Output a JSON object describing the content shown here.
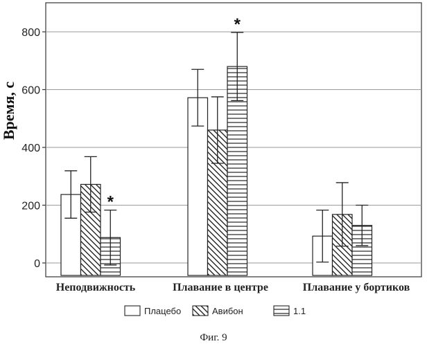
{
  "chart_data": {
    "type": "bar",
    "ylabel": "Время, с",
    "ylim": [
      -50,
      1000
    ],
    "yticks": [
      0,
      200,
      400,
      600,
      800
    ],
    "grid": "horizontal",
    "categories": [
      "Неподвижность",
      "Плавание в центре",
      "Плавание у бортиков"
    ],
    "series": [
      {
        "name": "Плацебо",
        "pattern": "plain",
        "values": [
          237,
          572,
          93
        ],
        "errors": [
          82,
          98,
          90
        ],
        "significant": [
          false,
          false,
          false
        ]
      },
      {
        "name": "Авибон",
        "pattern": "diagonal",
        "values": [
          272,
          460,
          168
        ],
        "errors": [
          96,
          115,
          110
        ],
        "significant": [
          false,
          false,
          false
        ]
      },
      {
        "name": "1.1",
        "pattern": "horizontal",
        "values": [
          88,
          680,
          130
        ],
        "errors": [
          95,
          118,
          70
        ],
        "significant": [
          true,
          true,
          false
        ]
      }
    ],
    "significance_marker": "*",
    "legend_position": "bottom"
  },
  "caption": "Фиг. 9"
}
